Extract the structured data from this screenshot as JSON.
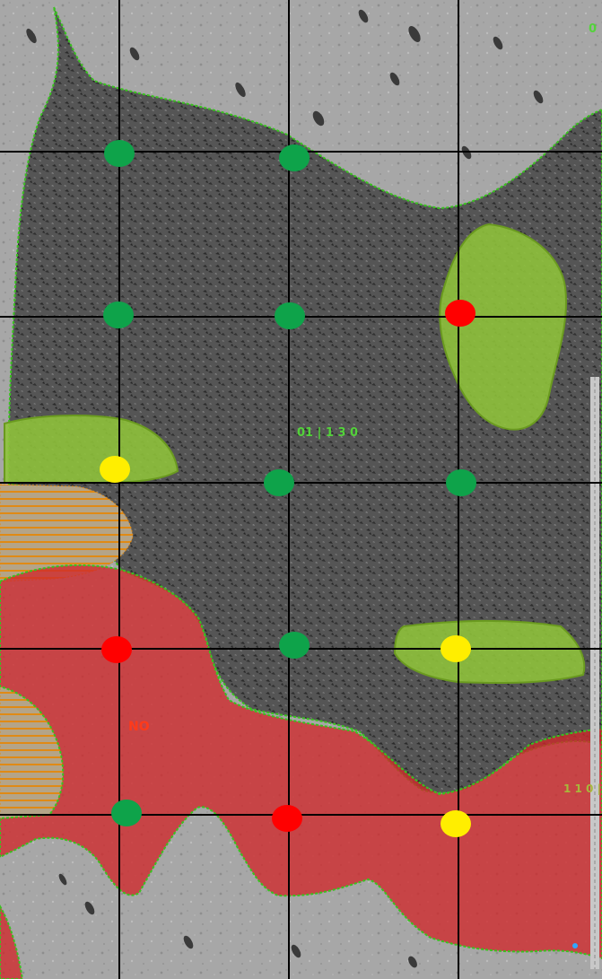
{
  "map": {
    "labels": {
      "corner_top_right": "0",
      "stand_center": "01 | 1 3 0",
      "red_zone": "NO",
      "right_edge": "1 1 0 |"
    },
    "colors": {
      "background_light": "#a9a9a9",
      "forest_dark": "#4d4d4d",
      "forest_texture": "#2e2e2e",
      "grid_line": "#000000",
      "boundary_dotted": "#39c21f",
      "red_zone_fill": "#d0282a",
      "green_zone_fill": "#8fc43a",
      "hatch_fill": "#b99a66",
      "hatch_line": "#e08a15",
      "label_green": "#53d33a",
      "label_red": "#ff3a1a",
      "label_olive": "#a8b83a"
    },
    "points": {
      "legend": {
        "green": "green-point-marker",
        "red": "red-point-marker",
        "yellow": "yellow-point-marker"
      },
      "row_1": [
        "green",
        "green"
      ],
      "row_2": [
        "green",
        "green",
        "red"
      ],
      "row_3": [
        "yellow",
        "green",
        "green"
      ],
      "row_4": [
        "red",
        "green",
        "yellow"
      ],
      "row_5": [
        "green",
        "red",
        "yellow"
      ]
    }
  }
}
